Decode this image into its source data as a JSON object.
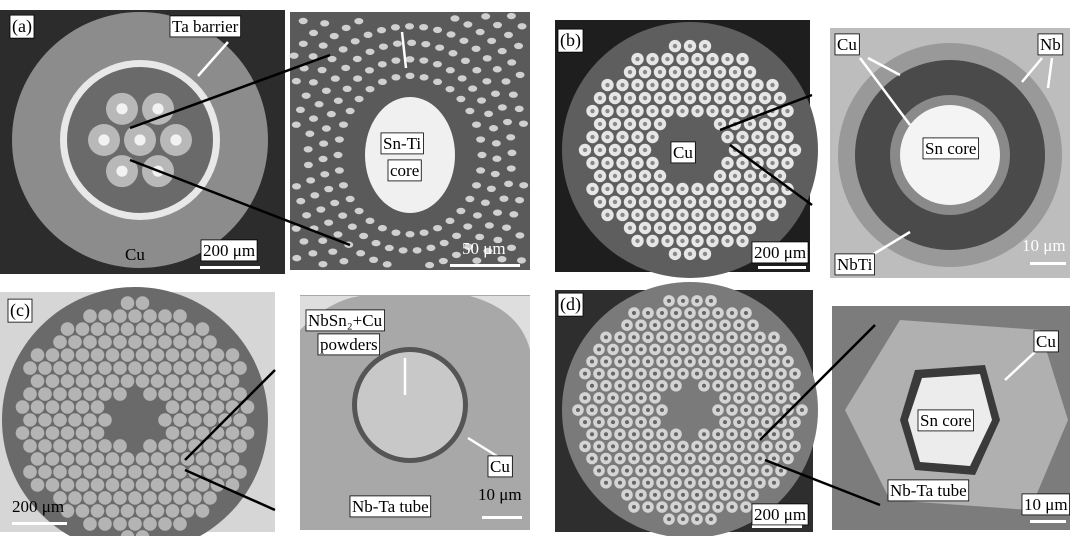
{
  "panels": [
    {
      "label": "(a)",
      "images": [
        {
          "annotations": [
            "Ta barrier",
            "Cu"
          ],
          "scale_bar": "200 μm"
        },
        {
          "annotations": [
            "Sn-Ti",
            "core"
          ],
          "scale_bar": "50 μm"
        }
      ]
    },
    {
      "label": "(b)",
      "images": [
        {
          "annotations": [
            "Cu"
          ],
          "scale_bar": "200 μm"
        },
        {
          "annotations": [
            "Cu",
            "Nb",
            "Sn core",
            "NbTi"
          ],
          "scale_bar": "10 μm"
        }
      ]
    },
    {
      "label": "(c)",
      "images": [
        {
          "annotations": [],
          "scale_bar": "200 μm"
        },
        {
          "annotations": [
            "NbSn₂+Cu",
            "powders",
            "Cu",
            "Nb-Ta tube"
          ],
          "scale_bar": "10 μm"
        }
      ]
    },
    {
      "label": "(d)",
      "images": [
        {
          "annotations": [],
          "scale_bar": "200 μm"
        },
        {
          "annotations": [
            "Cu",
            "Sn core",
            "Nb-Ta tube"
          ],
          "scale_bar": "10 μm"
        }
      ]
    }
  ]
}
